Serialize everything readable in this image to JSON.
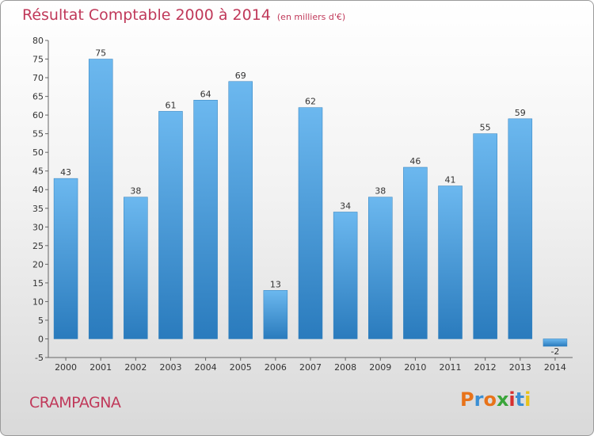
{
  "header": {
    "title": "Résultat Comptable 2000 à 2014",
    "subtitle": "(en milliers d'€)"
  },
  "commune": "CRAMPAGNA",
  "logo": {
    "text": "Proxiti",
    "colors": [
      "#e8731a",
      "#3b8fd4",
      "#e8731a",
      "#3aa53a",
      "#d63030",
      "#3b8fd4",
      "#e8c21a"
    ]
  },
  "colors": {
    "bar_top": "#6cb8ef",
    "bar_bottom": "#2a7bbd",
    "title": "#c0395a"
  },
  "chart_data": {
    "type": "bar",
    "title": "Résultat Comptable 2000 à 2014",
    "subtitle": "(en milliers d'€)",
    "categories": [
      "2000",
      "2001",
      "2002",
      "2003",
      "2004",
      "2005",
      "2006",
      "2007",
      "2008",
      "2009",
      "2010",
      "2011",
      "2012",
      "2013",
      "2014"
    ],
    "values": [
      43,
      75,
      38,
      61,
      64,
      69,
      13,
      62,
      34,
      38,
      46,
      41,
      55,
      59,
      -2
    ],
    "ylim": [
      -5,
      80
    ],
    "yticks": [
      -5,
      0,
      5,
      10,
      15,
      20,
      25,
      30,
      35,
      40,
      45,
      50,
      55,
      60,
      65,
      70,
      75,
      80
    ],
    "grid": false,
    "xlabel": "",
    "ylabel": ""
  }
}
